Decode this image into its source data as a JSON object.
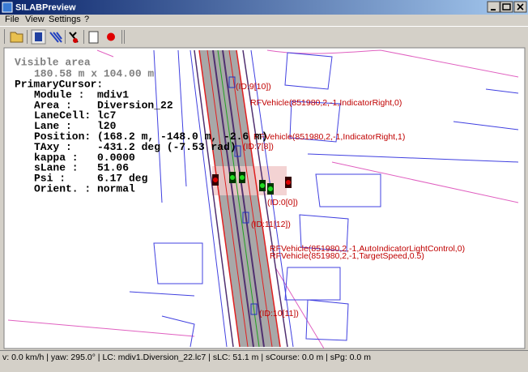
{
  "window": {
    "title": "SILABPreview"
  },
  "menu": [
    "File",
    "View",
    "Settings",
    "?"
  ],
  "info": {
    "heading": "Visible area",
    "extent": "180.58 m x 104.00 m",
    "cursor": "PrimaryCursor:",
    "rows": [
      {
        "key": "Module  :",
        "value": "mdiv1"
      },
      {
        "key": "Area    :",
        "value": "Diversion_22"
      },
      {
        "key": "LaneCell:",
        "value": "lc7"
      },
      {
        "key": "Lane    :",
        "value": "l20"
      },
      {
        "key": "Position:",
        "value": "(168.2 m, -148.0 m, -2.6 m)"
      },
      {
        "key": "TAxy    :",
        "value": "-431.2 deg (-7.53 rad)"
      },
      {
        "key": "kappa   :",
        "value": "0.0000"
      },
      {
        "key": "sLane   :",
        "value": "51.06"
      },
      {
        "key": "Psi     :",
        "value": "6.17 deg"
      },
      {
        "key": "Orient. :",
        "value": "normal"
      }
    ]
  },
  "map_labels": [
    "(ID:9[10])",
    "RFVehicle(851980,2,-1,IndicatorRight,0)",
    "RFVehicle(851980,2,-1,IndicatorRight,1)",
    "(ID:7[8])",
    "(ID:0[0])",
    "(ID:11[12])",
    "RFVehicle(851980,2,-1,AutoIndicatorLightControl,0)",
    "RFVehicle(851980,2,-1,TargetSpeed,0.5)",
    "(ID:10[11])"
  ],
  "status": "v: 0.0 km/h | yaw: 295.0° | LC: mdiv1.Diversion_22.lc7 | sLC: 51.1 m | sCourse: 0.0 m | sPg: 0.0 m"
}
